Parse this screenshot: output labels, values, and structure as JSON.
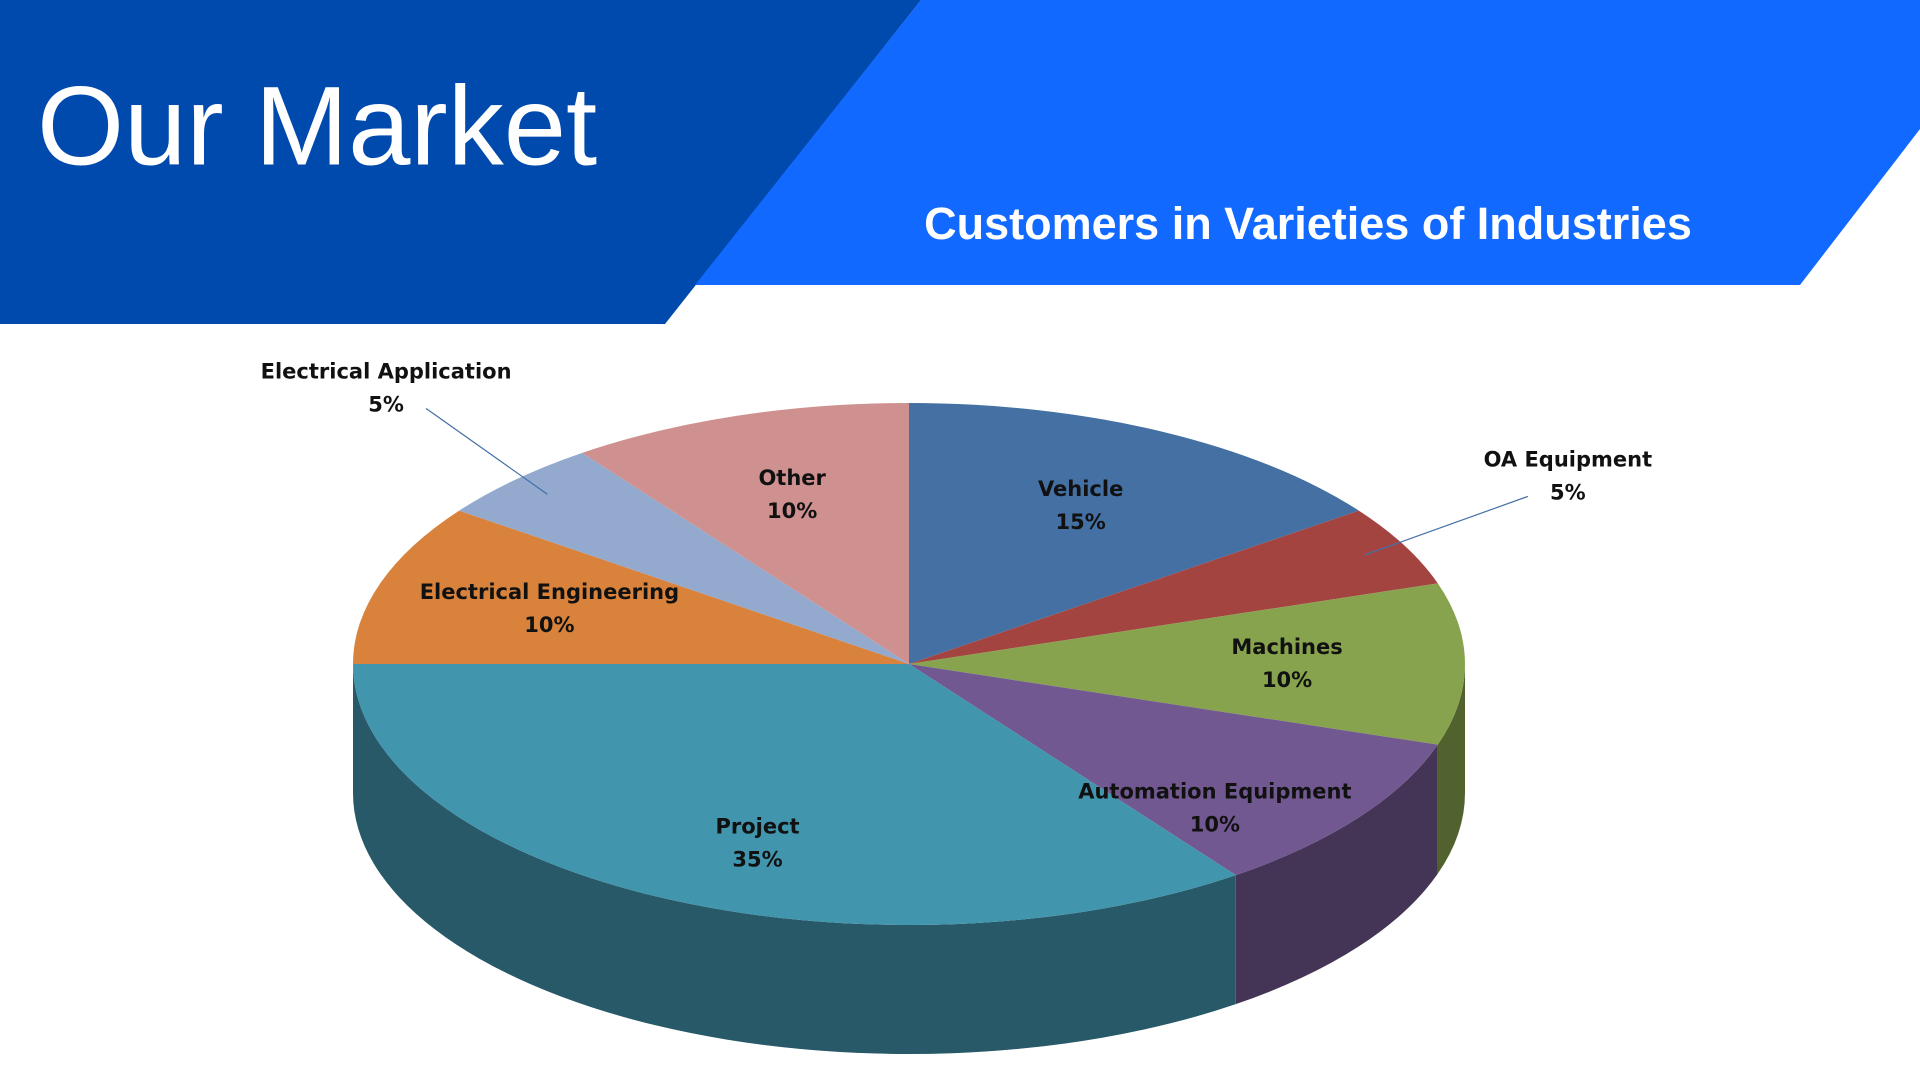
{
  "chart_data": {
    "type": "pie",
    "title": "Our Market",
    "subtitle": "Customers in Varieties of Industries",
    "categories": [
      "Vehicle",
      "OA Equipment",
      "Machines",
      "Automation Equipment",
      "Project",
      "Electrical Engineering",
      "Electrical Application",
      "Other"
    ],
    "values": [
      15,
      5,
      10,
      10,
      35,
      10,
      5,
      10
    ],
    "value_labels": [
      "15%",
      "5%",
      "10%",
      "10%",
      "35%",
      "10%",
      "5%",
      "10%"
    ],
    "colors": [
      "#4470a4",
      "#a44441",
      "#87a34e",
      "#725890",
      "#4195ad",
      "#d9823c",
      "#93a9cd",
      "#cf9190"
    ]
  }
}
